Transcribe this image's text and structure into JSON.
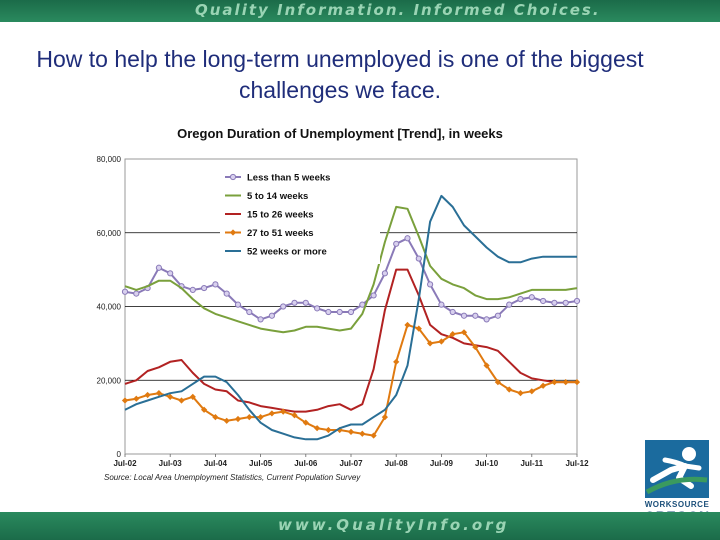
{
  "header": {
    "tagline": "Quality Information. Informed Choices."
  },
  "slide": {
    "title": "How to help the long-term unemployed is one of the biggest challenges we face."
  },
  "footer": {
    "url": "www.QualityInfo.org"
  },
  "logo": {
    "line1": "WORKSOURCE",
    "line2": "OREGON"
  },
  "colors": {
    "banner": "#1b6b49",
    "title": "#1f2d7a"
  },
  "chart_data": {
    "type": "line",
    "title": "Oregon Duration of Unemployment [Trend], in weeks",
    "source": "Source: Local Area Unemployment Statistics, Current Population Survey",
    "x": [
      2002.5,
      2002.75,
      2003,
      2003.25,
      2003.5,
      2003.75,
      2004,
      2004.25,
      2004.5,
      2004.75,
      2005,
      2005.25,
      2005.5,
      2005.75,
      2006,
      2006.25,
      2006.5,
      2006.75,
      2007,
      2007.25,
      2007.5,
      2007.75,
      2008,
      2008.25,
      2008.5,
      2008.75,
      2009,
      2009.25,
      2009.5,
      2009.75,
      2010,
      2010.25,
      2010.5,
      2010.75,
      2011,
      2011.25,
      2011.5,
      2011.75,
      2012,
      2012.25,
      2012.5
    ],
    "x_tick_labels": [
      "Jul-02",
      "Jul-03",
      "Jul-04",
      "Jul-05",
      "Jul-06",
      "Jul-07",
      "Jul-08",
      "Jul-09",
      "Jul-10",
      "Jul-11",
      "Jul-12"
    ],
    "x_tick_values": [
      2002.5,
      2003.5,
      2004.5,
      2005.5,
      2006.5,
      2007.5,
      2008.5,
      2009.5,
      2010.5,
      2011.5,
      2012.5
    ],
    "ylim": [
      0,
      80000
    ],
    "y_ticks": [
      0,
      20000,
      40000,
      60000,
      80000
    ],
    "y_tick_labels": [
      "0",
      "20,000",
      "40,000",
      "60,000",
      "80,000"
    ],
    "gridlines": "horizontal",
    "legend_position": "top-left",
    "series": [
      {
        "name": "Less than 5 weeks",
        "color": "#8a7ab8",
        "marker": "circle",
        "values": [
          44000,
          43500,
          45000,
          50500,
          49000,
          45500,
          44500,
          45000,
          46000,
          43500,
          40500,
          38500,
          36500,
          37500,
          40000,
          41000,
          41000,
          39500,
          38500,
          38500,
          38500,
          40500,
          43000,
          49000,
          57000,
          58500,
          53000,
          46000,
          40500,
          38500,
          37500,
          37500,
          36500,
          37500,
          40500,
          42000,
          42500,
          41500,
          41000,
          41000,
          41500
        ]
      },
      {
        "name": "5 to 14 weeks",
        "color": "#7aa03c",
        "marker": "none",
        "values": [
          45500,
          44500,
          45500,
          47000,
          47000,
          45000,
          42000,
          39500,
          38000,
          37000,
          36000,
          35000,
          34000,
          33500,
          33000,
          33500,
          34500,
          34500,
          34000,
          33500,
          34000,
          38000,
          46000,
          57500,
          67000,
          66500,
          59000,
          51000,
          47500,
          46000,
          45000,
          43000,
          42000,
          42000,
          42500,
          43500,
          44500,
          44500,
          44500,
          44500,
          45000
        ]
      },
      {
        "name": "15 to 26 weeks",
        "color": "#b22222",
        "marker": "none",
        "values": [
          19000,
          20000,
          22500,
          23500,
          25000,
          25500,
          22000,
          19000,
          17500,
          17000,
          14500,
          14000,
          13000,
          12500,
          12000,
          11500,
          11500,
          12000,
          13000,
          13500,
          12000,
          13500,
          23000,
          39000,
          50000,
          50000,
          43000,
          35000,
          32500,
          31500,
          30000,
          29500,
          29000,
          28000,
          25000,
          22000,
          20500,
          20000,
          19500,
          19500,
          19500
        ]
      },
      {
        "name": "27 to 51 weeks",
        "color": "#e07a10",
        "marker": "diamond",
        "values": [
          14500,
          15000,
          16000,
          16500,
          15500,
          14500,
          15500,
          12000,
          10000,
          9000,
          9500,
          10000,
          10000,
          11000,
          11500,
          10500,
          8500,
          7000,
          6500,
          6500,
          6000,
          5500,
          5000,
          10000,
          25000,
          35000,
          34000,
          30000,
          30500,
          32500,
          33000,
          29000,
          24000,
          19500,
          17500,
          16500,
          17000,
          18500,
          19500,
          19500,
          19500
        ]
      },
      {
        "name": "52 weeks or more",
        "color": "#2a6f96",
        "marker": "none",
        "values": [
          12000,
          13500,
          14500,
          15500,
          16500,
          17000,
          19000,
          21000,
          21000,
          19500,
          16000,
          12000,
          8500,
          6500,
          5500,
          4500,
          4000,
          4000,
          5000,
          7000,
          8000,
          8000,
          10000,
          12000,
          16000,
          24000,
          42000,
          63000,
          70000,
          67000,
          62000,
          59000,
          56000,
          53500,
          52000,
          52000,
          53000,
          53500,
          53500,
          53500,
          53500
        ]
      }
    ]
  }
}
